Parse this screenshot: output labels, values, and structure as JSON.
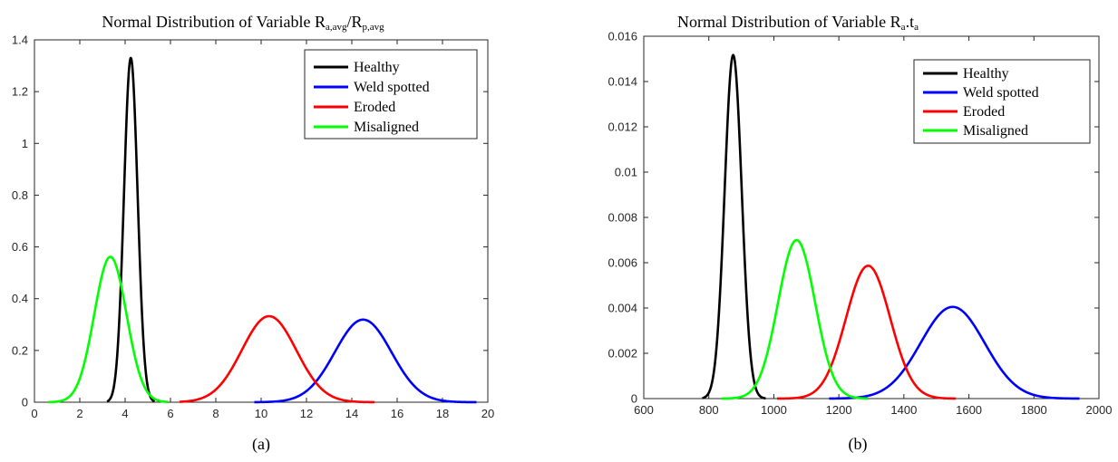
{
  "figure": {
    "caption_a": "(a)",
    "caption_b": "(b)"
  },
  "chart_data": [
    {
      "type": "line",
      "title_main": "Normal Distribution of Variable R",
      "title_sub1": "a,avg",
      "title_slash": "/R",
      "title_sub2": "p,avg",
      "xlabel": "",
      "ylabel": "",
      "xlim": [
        0,
        20
      ],
      "ylim": [
        0,
        1.4
      ],
      "xticks": [
        "0",
        "2",
        "4",
        "6",
        "8",
        "10",
        "12",
        "14",
        "16",
        "18",
        "20"
      ],
      "yticks": [
        "0",
        "0.2",
        "0.4",
        "0.6",
        "0.8",
        "1",
        "1.2",
        "1.4"
      ],
      "grid": false,
      "legend_position": "top-right",
      "series": [
        {
          "name": "Healthy",
          "color": "#000000",
          "distribution": "normal",
          "mean": 4.25,
          "std": 0.3,
          "x_range": [
            3.2,
            5.3
          ]
        },
        {
          "name": "Weld spotted",
          "color": "#0000ff",
          "distribution": "normal",
          "mean": 14.5,
          "std": 1.25,
          "x_range": [
            9.7,
            19.5
          ]
        },
        {
          "name": "Eroded",
          "color": "#ff0000",
          "distribution": "normal",
          "mean": 10.35,
          "std": 1.2,
          "x_range": [
            6.4,
            15.0
          ]
        },
        {
          "name": "Misaligned",
          "color": "#00ff00",
          "distribution": "normal",
          "mean": 3.35,
          "std": 0.71,
          "x_range": [
            0.6,
            5.9
          ]
        }
      ]
    },
    {
      "type": "line",
      "title_main": "Normal Distribution of Variable R",
      "title_sub1": "a",
      "title_mid": ".t",
      "title_sub2": "a",
      "xlabel": "",
      "ylabel": "",
      "xlim": [
        600,
        2000
      ],
      "ylim": [
        0,
        0.016
      ],
      "xticks": [
        "600",
        "800",
        "1000",
        "1200",
        "1400",
        "1600",
        "1800",
        "2000"
      ],
      "yticks": [
        "0",
        "0.002",
        "0.004",
        "0.006",
        "0.008",
        "0.01",
        "0.012",
        "0.014",
        "0.016"
      ],
      "grid": false,
      "legend_position": "top-right",
      "series": [
        {
          "name": "Healthy",
          "color": "#000000",
          "distribution": "normal",
          "mean": 875,
          "std": 26.3,
          "x_range": [
            780,
            975
          ]
        },
        {
          "name": "Weld spotted",
          "color": "#0000ff",
          "distribution": "normal",
          "mean": 1550,
          "std": 98.5,
          "x_range": [
            1170,
            1940
          ]
        },
        {
          "name": "Eroded",
          "color": "#ff0000",
          "distribution": "normal",
          "mean": 1290,
          "std": 68.0,
          "x_range": [
            1010,
            1560
          ]
        },
        {
          "name": "Misaligned",
          "color": "#00ff00",
          "distribution": "normal",
          "mean": 1070,
          "std": 57.0,
          "x_range": [
            840,
            1290
          ]
        }
      ]
    }
  ]
}
